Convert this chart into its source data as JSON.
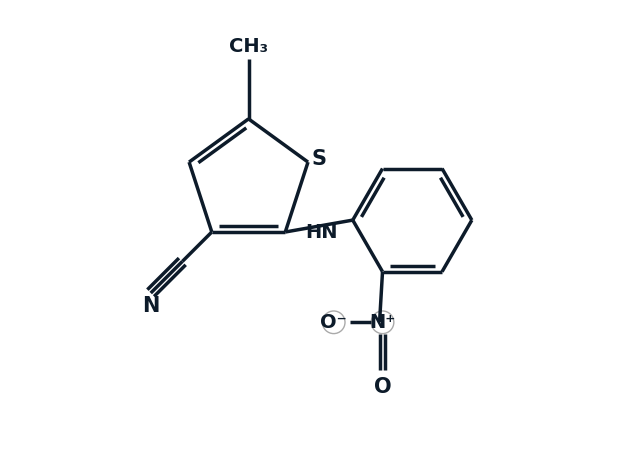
{
  "bg_color": "#ffffff",
  "line_color": "#0d1b2a",
  "line_width": 2.5,
  "font_size": 14,
  "figsize": [
    6.4,
    4.7
  ],
  "dpi": 100,
  "xlim": [
    0,
    10
  ],
  "ylim": [
    0,
    7.8
  ]
}
